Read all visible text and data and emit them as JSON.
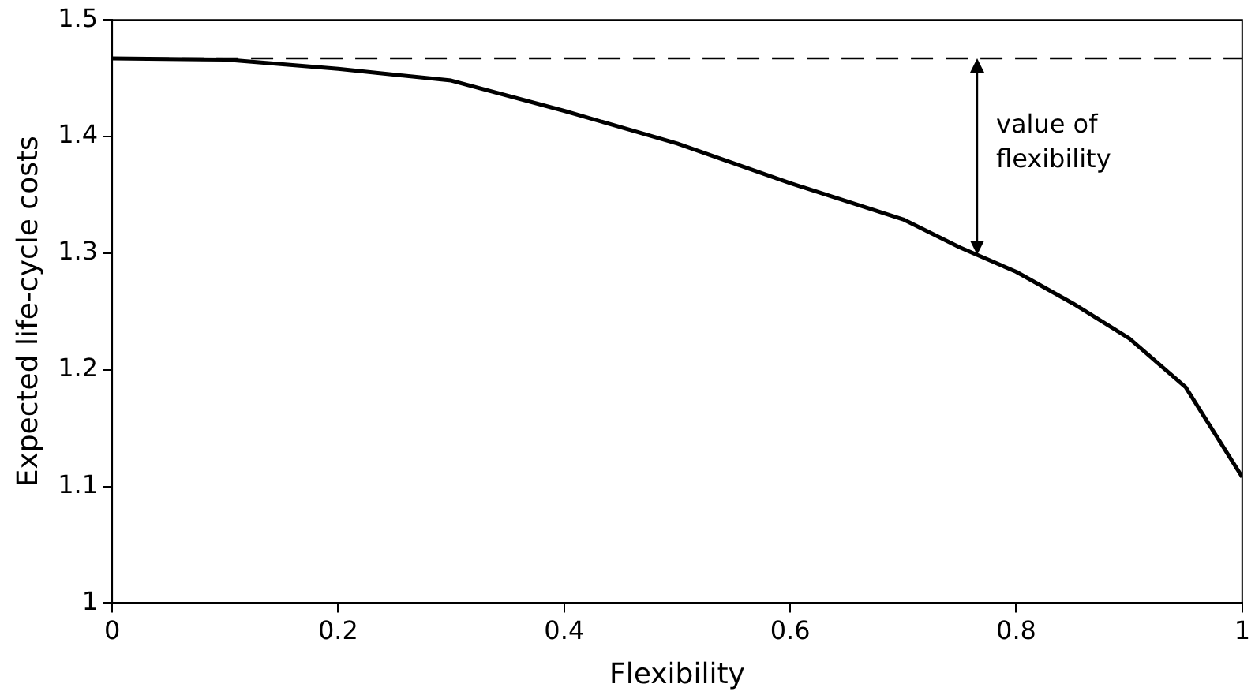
{
  "chart_data": {
    "type": "line",
    "xlabel": "Flexibility",
    "ylabel": "Expected life-cycle costs",
    "x": [
      0,
      0.1,
      0.2,
      0.3,
      0.4,
      0.5,
      0.6,
      0.7,
      0.75,
      0.8,
      0.85,
      0.9,
      0.95,
      1
    ],
    "series": [
      {
        "color": "#000000",
        "values": [
          1.467,
          1.466,
          1.458,
          1.448,
          1.422,
          1.394,
          1.36,
          1.329,
          1.305,
          1.284,
          1.257,
          1.227,
          1.185,
          1.108
        ]
      }
    ],
    "xlim": [
      0,
      1
    ],
    "xticks": [
      0,
      0.2,
      0.4,
      0.6,
      0.8,
      1
    ],
    "ylim": [
      1,
      1.5
    ],
    "yticks": [
      1,
      1.1,
      1.2,
      1.3,
      1.4,
      1.5
    ],
    "ref_lines": [
      {
        "axis": "y",
        "value": 1.467,
        "color": "#000000",
        "line_style": "dashed"
      }
    ],
    "annotations": [
      "value of flexibility"
    ],
    "grid": false,
    "legend": false,
    "marker": "none",
    "line_style": "solid"
  }
}
